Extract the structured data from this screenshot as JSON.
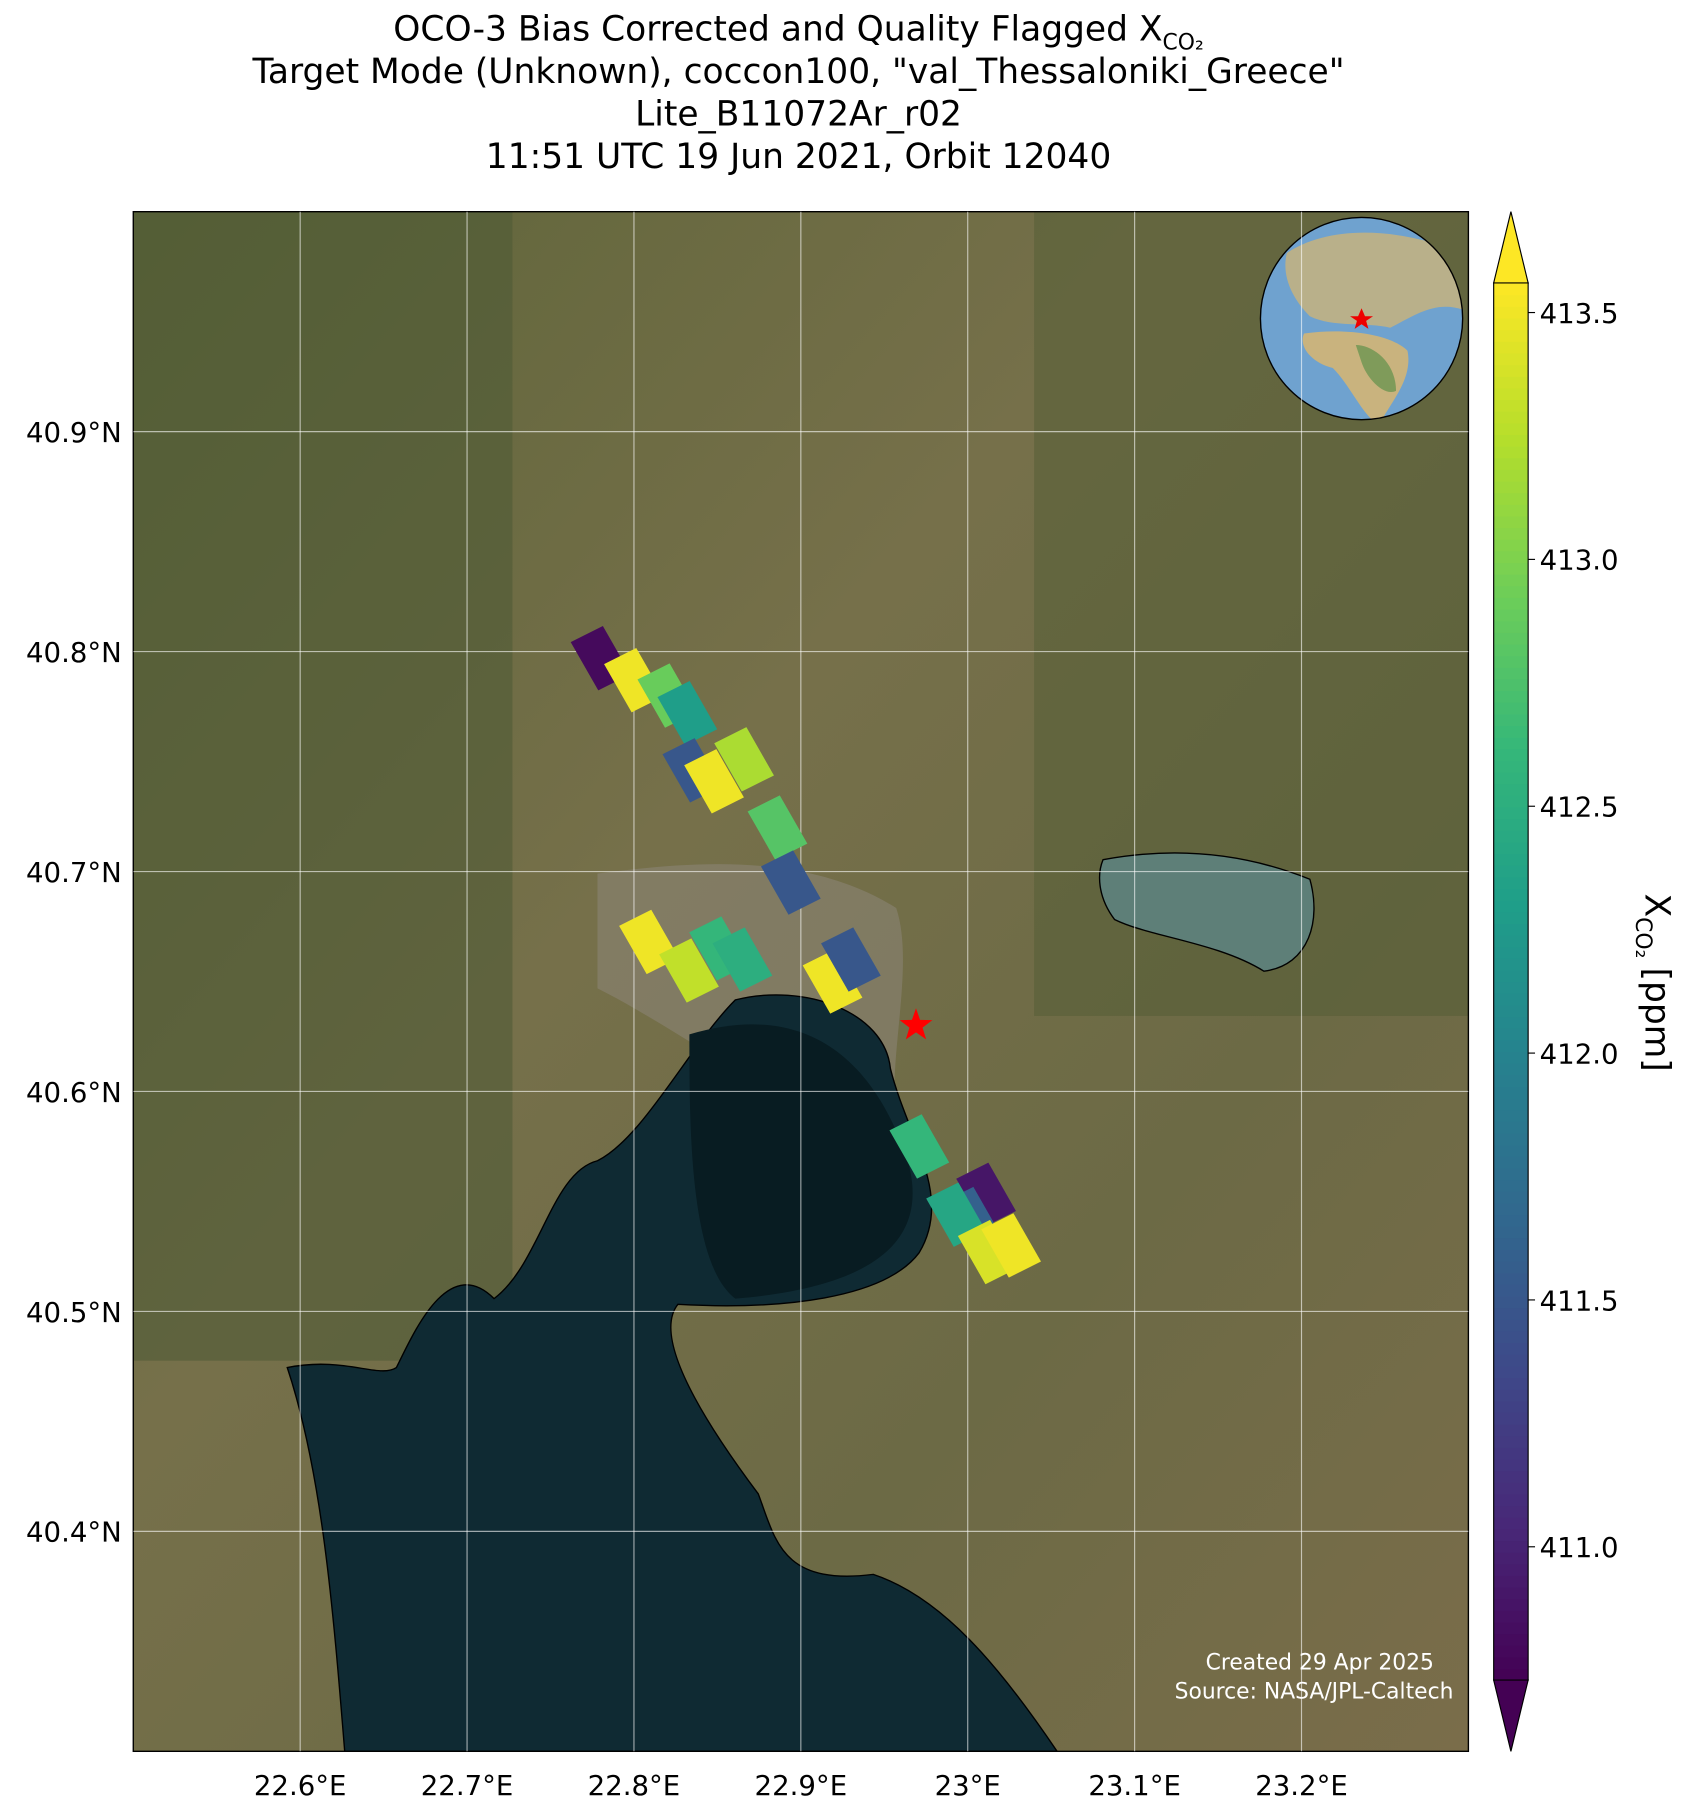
{
  "chart_data": {
    "type": "footprint-map",
    "title_lines": [
      "OCO-3 Bias Corrected and Quality Flagged X",
      "Target Mode (Unknown), coccon100, \"val_Thessaloniki_Greece\"",
      "Lite_B11072Ar_r02",
      "11:51 UTC 19 Jun 2021, Orbit 12040"
    ],
    "title_subscript": "CO₂",
    "xlim": [
      22.5,
      23.3
    ],
    "ylim": [
      40.3,
      41.0
    ],
    "xticks": [
      {
        "value": 22.6,
        "label": "22.6°E"
      },
      {
        "value": 22.7,
        "label": "22.7°E"
      },
      {
        "value": 22.8,
        "label": "22.8°E"
      },
      {
        "value": 22.9,
        "label": "22.9°E"
      },
      {
        "value": 23.0,
        "label": "23°E"
      },
      {
        "value": 23.1,
        "label": "23.1°E"
      },
      {
        "value": 23.2,
        "label": "23.2°E"
      }
    ],
    "yticks": [
      {
        "value": 40.4,
        "label": "40.4°N"
      },
      {
        "value": 40.5,
        "label": "40.5°N"
      },
      {
        "value": 40.6,
        "label": "40.6°N"
      },
      {
        "value": 40.7,
        "label": "40.7°N"
      },
      {
        "value": 40.8,
        "label": "40.8°N"
      },
      {
        "value": 40.9,
        "label": "40.9°N"
      }
    ],
    "grid": true,
    "colormap": "viridis",
    "clim": [
      410.73,
      413.56
    ],
    "cticks": [
      {
        "value": 411.0,
        "label": "411.0"
      },
      411.5,
      {
        "value": 412.0,
        "label": "412.0"
      },
      412.5,
      {
        "value": 413.0,
        "label": "413.0"
      },
      413.5
    ],
    "colorbar_label": {
      "main": "X",
      "subscript": "CO₂",
      "unit": "[ppm]"
    },
    "footprints": {
      "lon": [
        22.78,
        22.8,
        22.82,
        22.832,
        22.835,
        22.848,
        22.866,
        22.886,
        22.894,
        22.809,
        22.833,
        22.851,
        22.865,
        22.919,
        22.93,
        22.971,
        23.011,
        23.002,
        22.993,
        23.012,
        23.026
      ],
      "lat": [
        40.797,
        40.787,
        40.78,
        40.772,
        40.746,
        40.741,
        40.751,
        40.72,
        40.695,
        40.668,
        40.655,
        40.665,
        40.66,
        40.65,
        40.66,
        40.575,
        40.553,
        40.542,
        40.544,
        40.527,
        40.53
      ],
      "xco2": [
        410.8,
        413.5,
        412.9,
        412.3,
        411.5,
        413.5,
        413.2,
        412.8,
        411.5,
        413.5,
        413.3,
        412.6,
        412.5,
        413.5,
        411.5,
        412.6,
        410.9,
        411.6,
        412.4,
        413.4,
        413.5
      ]
    },
    "target": {
      "lon": 22.969,
      "lat": 40.63
    },
    "credits": [
      "Created 29 Apr 2025",
      "Source: NASA/JPL-Caltech"
    ]
  }
}
